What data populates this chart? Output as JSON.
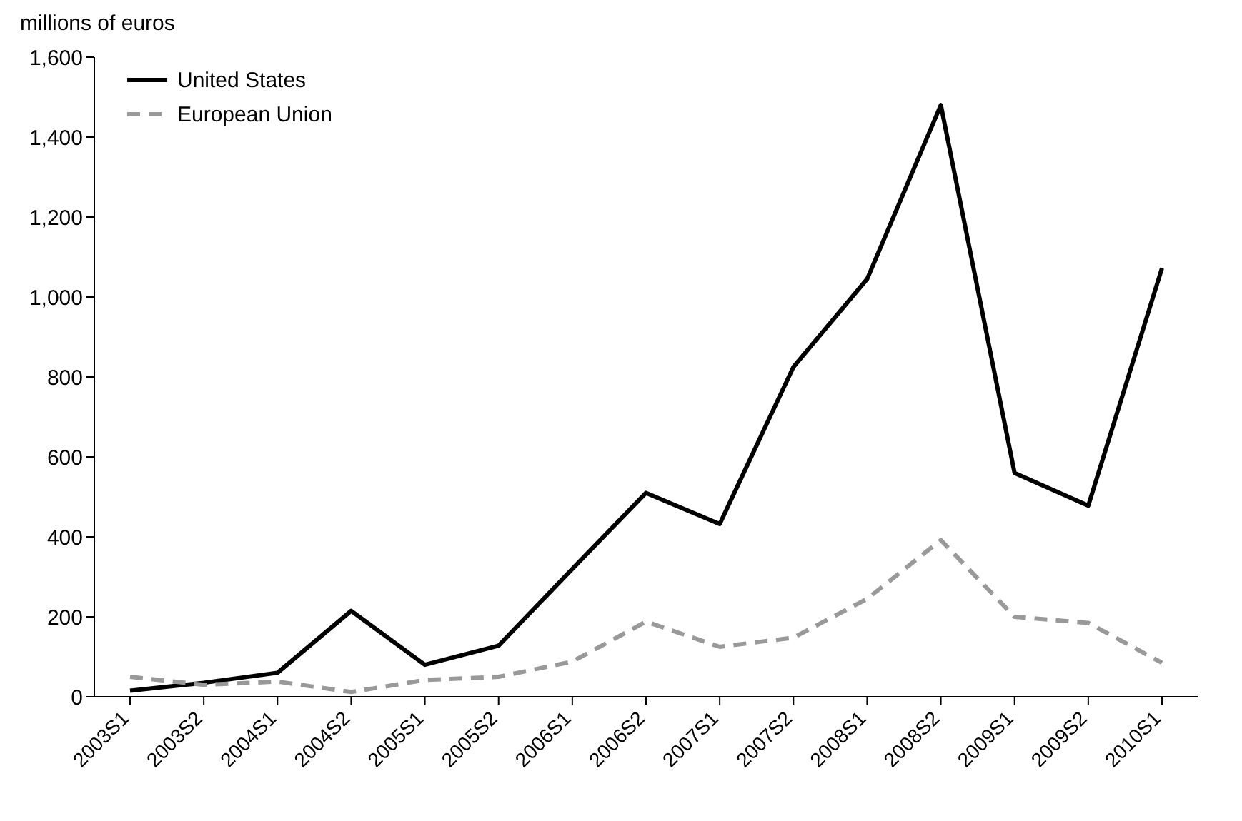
{
  "chart_data": {
    "type": "line",
    "ylabel": "millions of euros",
    "categories": [
      "2003S1",
      "2003S2",
      "2004S1",
      "2004S2",
      "2005S1",
      "2005S2",
      "2006S1",
      "2006S2",
      "2007S1",
      "2007S2",
      "2008S1",
      "2008S2",
      "2009S1",
      "2009S2",
      "2010S1"
    ],
    "series": [
      {
        "name": "United States",
        "color": "#000000",
        "line_style": "solid",
        "values": [
          15,
          35,
          60,
          215,
          80,
          128,
          320,
          510,
          432,
          825,
          1045,
          1480,
          560,
          478,
          1072
        ]
      },
      {
        "name": "European Union",
        "color": "#999999",
        "line_style": "dashed",
        "values": [
          50,
          30,
          38,
          12,
          42,
          50,
          88,
          188,
          125,
          148,
          245,
          392,
          200,
          185,
          85
        ]
      }
    ],
    "ylim": [
      0,
      1600
    ],
    "yticks": [
      0,
      200,
      400,
      600,
      800,
      {
        "value": 1000,
        "label": "1,000"
      },
      {
        "value": 1200,
        "label": "1,200"
      },
      {
        "value": 1400,
        "label": "1,400"
      },
      {
        "value": 1600,
        "label": "1,600"
      }
    ],
    "grid": false,
    "legend": "top left",
    "marker": "none"
  }
}
